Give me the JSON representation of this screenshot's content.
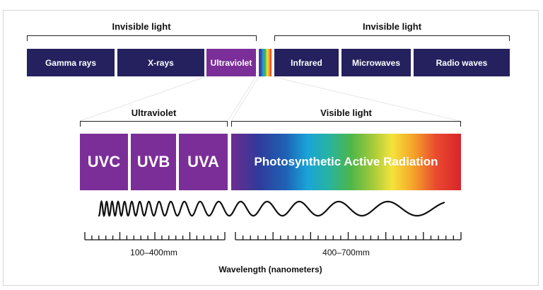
{
  "top": {
    "left_label": "Invisible light",
    "right_label": "Invisible light",
    "bands": [
      "Gamma rays",
      "X-rays",
      "Ultraviolet",
      "Infrared",
      "Microwaves",
      "Radio waves"
    ]
  },
  "detail": {
    "uv_label": "Ultraviolet",
    "visible_label": "Visible light",
    "uv_boxes": [
      "UVC",
      "UVB",
      "UVA"
    ],
    "par_label": "Photosynthetic Active Radiation"
  },
  "scale": {
    "uv_range": "100–400mm",
    "visible_range": "400–700mm",
    "axis_title": "Wavelength (nanometers)"
  },
  "colors": {
    "band_navy": "#25205e",
    "uv_purple": "#7b2e98",
    "ultraviolet_band": "#7b2e98"
  }
}
